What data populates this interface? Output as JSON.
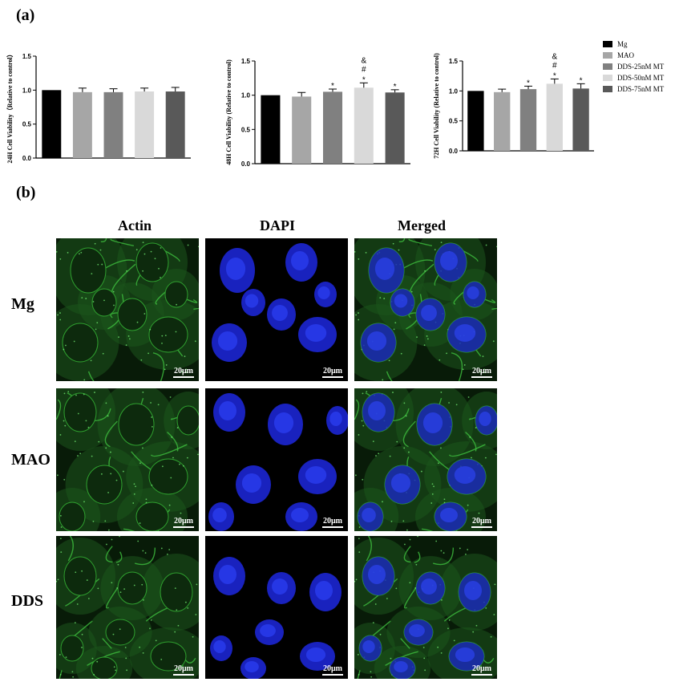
{
  "panel_a_label": "(a)",
  "panel_b_label": "(b)",
  "legend": {
    "items": [
      {
        "label": "Mg",
        "color": "#000000"
      },
      {
        "label": "MAO",
        "color": "#a6a6a6"
      },
      {
        "label": "DDS-25nM MT",
        "color": "#808080"
      },
      {
        "label": "DDS-50nM MT",
        "color": "#d9d9d9"
      },
      {
        "label": "DDS-75nM MT",
        "color": "#595959"
      }
    ]
  },
  "chart_data": [
    {
      "type": "bar",
      "ylabel": "24H Cell Viability（Relative to control）",
      "categories": [
        "Mg",
        "MAO",
        "DDS-25nM MT",
        "DDS-50nM MT",
        "DDS-75nM MT"
      ],
      "values": [
        1.0,
        0.97,
        0.97,
        0.98,
        0.98
      ],
      "errors": [
        0.0,
        0.06,
        0.05,
        0.05,
        0.06
      ],
      "annotations": [
        "",
        "",
        "",
        "",
        ""
      ],
      "ylim": [
        0,
        1.5
      ],
      "yticks": [
        "0.0",
        "0.5",
        "1.0",
        "1.5"
      ]
    },
    {
      "type": "bar",
      "ylabel": "48H Cell Viability (Relative to control)",
      "categories": [
        "Mg",
        "MAO",
        "DDS-25nM MT",
        "DDS-50nM MT",
        "DDS-75nM MT"
      ],
      "values": [
        1.0,
        0.98,
        1.05,
        1.11,
        1.04
      ],
      "errors": [
        0.0,
        0.06,
        0.04,
        0.07,
        0.04
      ],
      "annotations": [
        "",
        "",
        "*",
        "&\n#\n*",
        "*"
      ],
      "ylim": [
        0,
        1.5
      ],
      "yticks": [
        "0.0",
        "0.5",
        "1.0",
        "1.5"
      ]
    },
    {
      "type": "bar",
      "ylabel": "72H Cell Viability (Relative to control)",
      "categories": [
        "Mg",
        "MAO",
        "DDS-25nM MT",
        "DDS-50nM MT",
        "DDS-75nM MT"
      ],
      "values": [
        1.0,
        0.98,
        1.03,
        1.12,
        1.04
      ],
      "errors": [
        0.0,
        0.05,
        0.05,
        0.08,
        0.08
      ],
      "annotations": [
        "",
        "",
        "*",
        "&\n#\n*",
        "*"
      ],
      "ylim": [
        0,
        1.5
      ],
      "yticks": [
        "0.0",
        "0.5",
        "1.0",
        "1.5"
      ]
    }
  ],
  "micrographs": {
    "columns": [
      "Actin",
      "DAPI",
      "Merged"
    ],
    "rows": [
      "Mg",
      "MAO",
      "DDS"
    ],
    "scale_bar": "20μm"
  }
}
